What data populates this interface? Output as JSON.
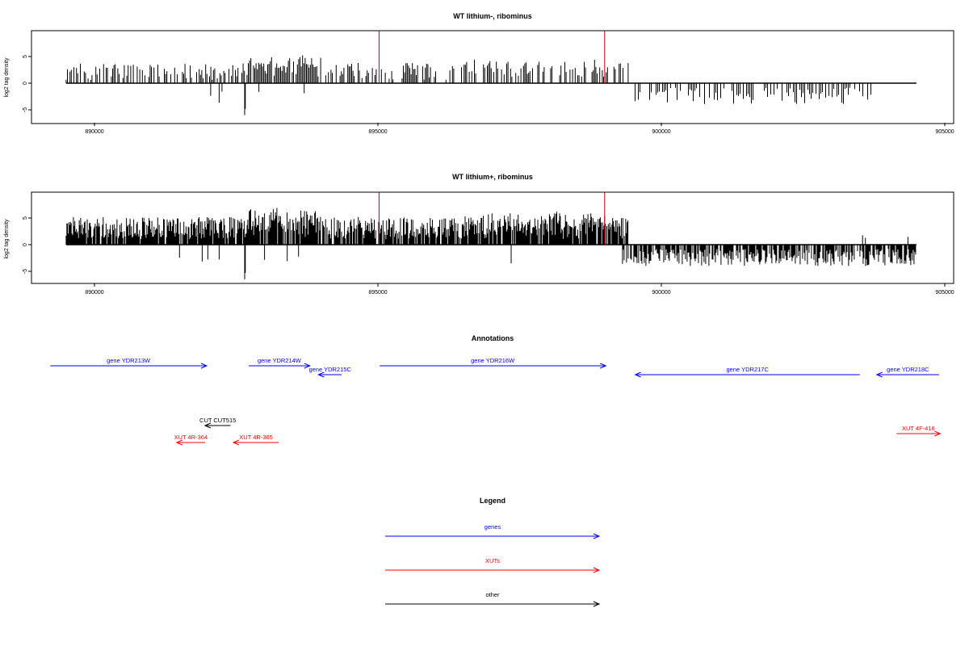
{
  "colors": {
    "gene": "#0000ff",
    "xut": "#ff0000",
    "other": "#000000",
    "marker": "#cc0000",
    "bars": "#000000"
  },
  "panel1": {
    "title": "WT lithium-, ribominus",
    "ylabel": "log2 tag density",
    "yticks": [
      "-5",
      "0",
      "5"
    ],
    "xticks": [
      "890000",
      "895000",
      "900000",
      "905000"
    ],
    "chart_data": {
      "type": "bar",
      "xlim": [
        889000,
        905150
      ],
      "ylim": [
        -7,
        9
      ],
      "series_coverage": "positive strand (+) above 0 from ~889500 to ~899400; negative strand (-) below 0 mostly from ~899500 to ~903700",
      "peaks": {
        "max_positive_approx": 6.5,
        "min_negative_approx": -6
      }
    }
  },
  "panel2": {
    "title": "WT lithium+, ribominus",
    "ylabel": "log2 tag density",
    "yticks": [
      "-5",
      "0",
      "5"
    ],
    "xticks": [
      "890000",
      "895000",
      "900000",
      "905000"
    ],
    "chart_data": {
      "type": "bar",
      "xlim": [
        889000,
        905150
      ],
      "ylim": [
        -7,
        9
      ],
      "series_coverage": "positive strand (+) dense from ~889500 to ~899400; negative strand (-) dense from ~899300 to ~904500",
      "peaks": {
        "max_positive_approx": 8.5,
        "min_negative_approx": -6.5
      }
    }
  },
  "markers": {
    "positions": [
      895020,
      899000
    ]
  },
  "annotations": {
    "title": "Annotations",
    "features": [
      {
        "label": "gene YDR213W",
        "kind": "gene",
        "start": 889220,
        "end": 891980,
        "dir": "right",
        "row": 1
      },
      {
        "label": "gene YDR214W",
        "kind": "gene",
        "start": 892720,
        "end": 893800,
        "dir": "right",
        "row": 1
      },
      {
        "label": "gene YDR215C",
        "kind": "gene",
        "start": 893950,
        "end": 894360,
        "dir": "left",
        "row": 2
      },
      {
        "label": "gene YDR216W",
        "kind": "gene",
        "start": 895030,
        "end": 899020,
        "dir": "right",
        "row": 1
      },
      {
        "label": "gene YDR217C",
        "kind": "gene",
        "start": 899540,
        "end": 903500,
        "dir": "left",
        "row": 2
      },
      {
        "label": "gene YDR218C",
        "kind": "gene",
        "start": 903800,
        "end": 904900,
        "dir": "left",
        "row": 2
      },
      {
        "label": "CUT CUT515",
        "kind": "other",
        "start": 891950,
        "end": 892400,
        "dir": "left",
        "row": 3
      },
      {
        "label": "XUT 4R-364",
        "kind": "xut",
        "start": 891450,
        "end": 891950,
        "dir": "left",
        "row": 4
      },
      {
        "label": "XUT 4R-365",
        "kind": "xut",
        "start": 892450,
        "end": 893250,
        "dir": "left",
        "row": 4
      },
      {
        "label": "XUT 4F-416",
        "kind": "xut",
        "start": 904150,
        "end": 904920,
        "dir": "right",
        "row": 5
      }
    ]
  },
  "legend": {
    "title": "Legend",
    "items": [
      {
        "label": "genes",
        "kind": "gene"
      },
      {
        "label": "XUTs",
        "kind": "xut"
      },
      {
        "label": "other",
        "kind": "other"
      }
    ]
  }
}
